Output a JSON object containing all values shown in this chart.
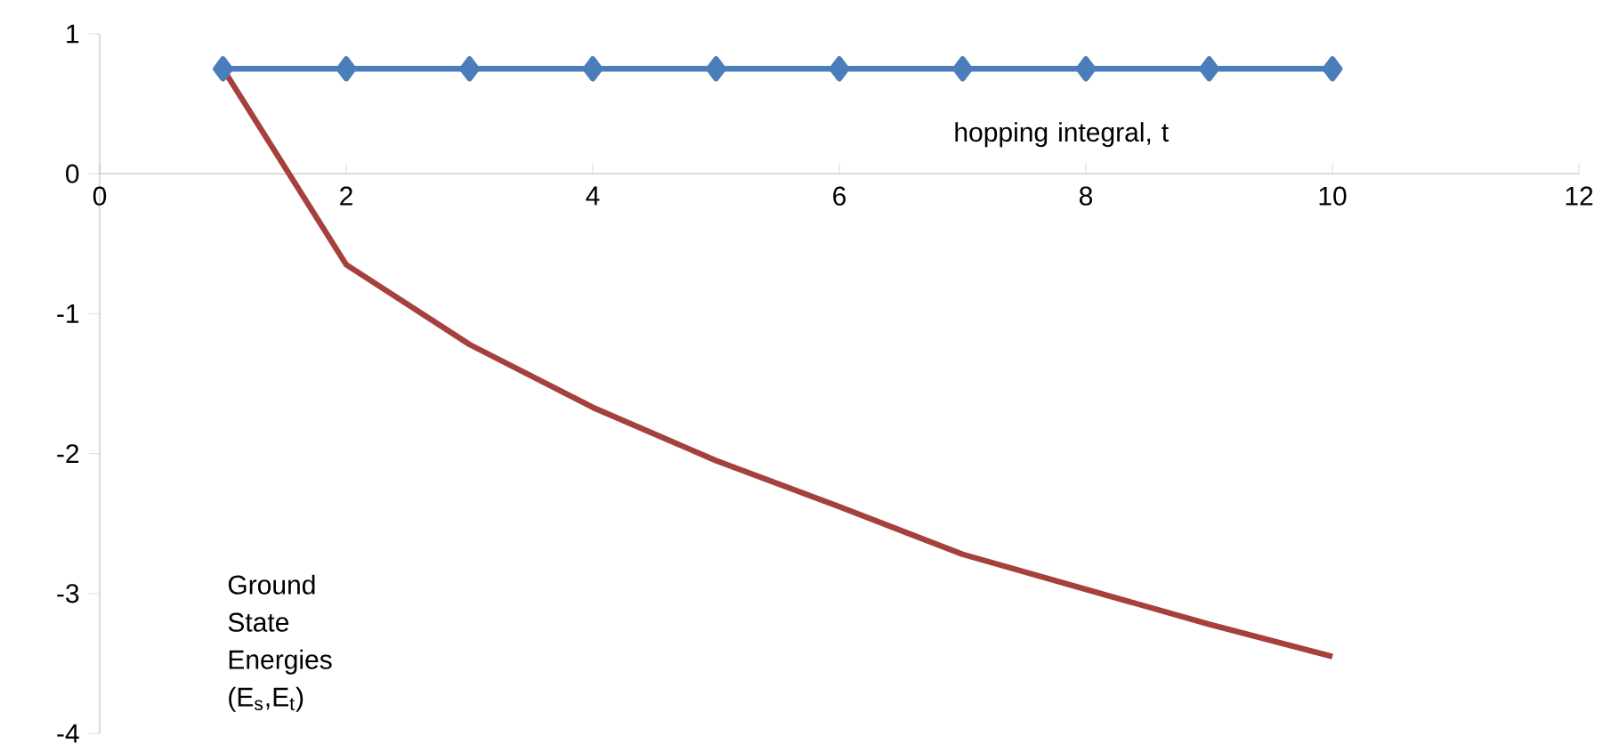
{
  "chart_data": {
    "type": "line",
    "xlim": [
      0,
      12
    ],
    "ylim": [
      -4,
      1
    ],
    "xticks": [
      0,
      2,
      4,
      6,
      8,
      10,
      12
    ],
    "yticks": [
      -4,
      -3,
      -2,
      -1,
      0,
      1
    ],
    "series": [
      {
        "color": "#4a7ebb",
        "marker": "diamond",
        "x": [
          1,
          2,
          3,
          4,
          5,
          6,
          7,
          8,
          9,
          10
        ],
        "values": [
          0.75,
          0.75,
          0.75,
          0.75,
          0.75,
          0.75,
          0.75,
          0.75,
          0.75,
          0.75
        ]
      },
      {
        "color": "#a5403d",
        "marker": "none",
        "x": [
          1,
          2,
          3,
          4,
          5,
          6,
          7,
          8,
          9,
          10
        ],
        "values": [
          0.75,
          -0.65,
          -1.22,
          -1.67,
          -2.05,
          -2.38,
          -2.72,
          -2.97,
          -3.22,
          -3.45
        ]
      }
    ],
    "annotations": [
      "hopping integral, t",
      "Ground State Energies (E$_{s}$,E$_{t}$)"
    ]
  }
}
